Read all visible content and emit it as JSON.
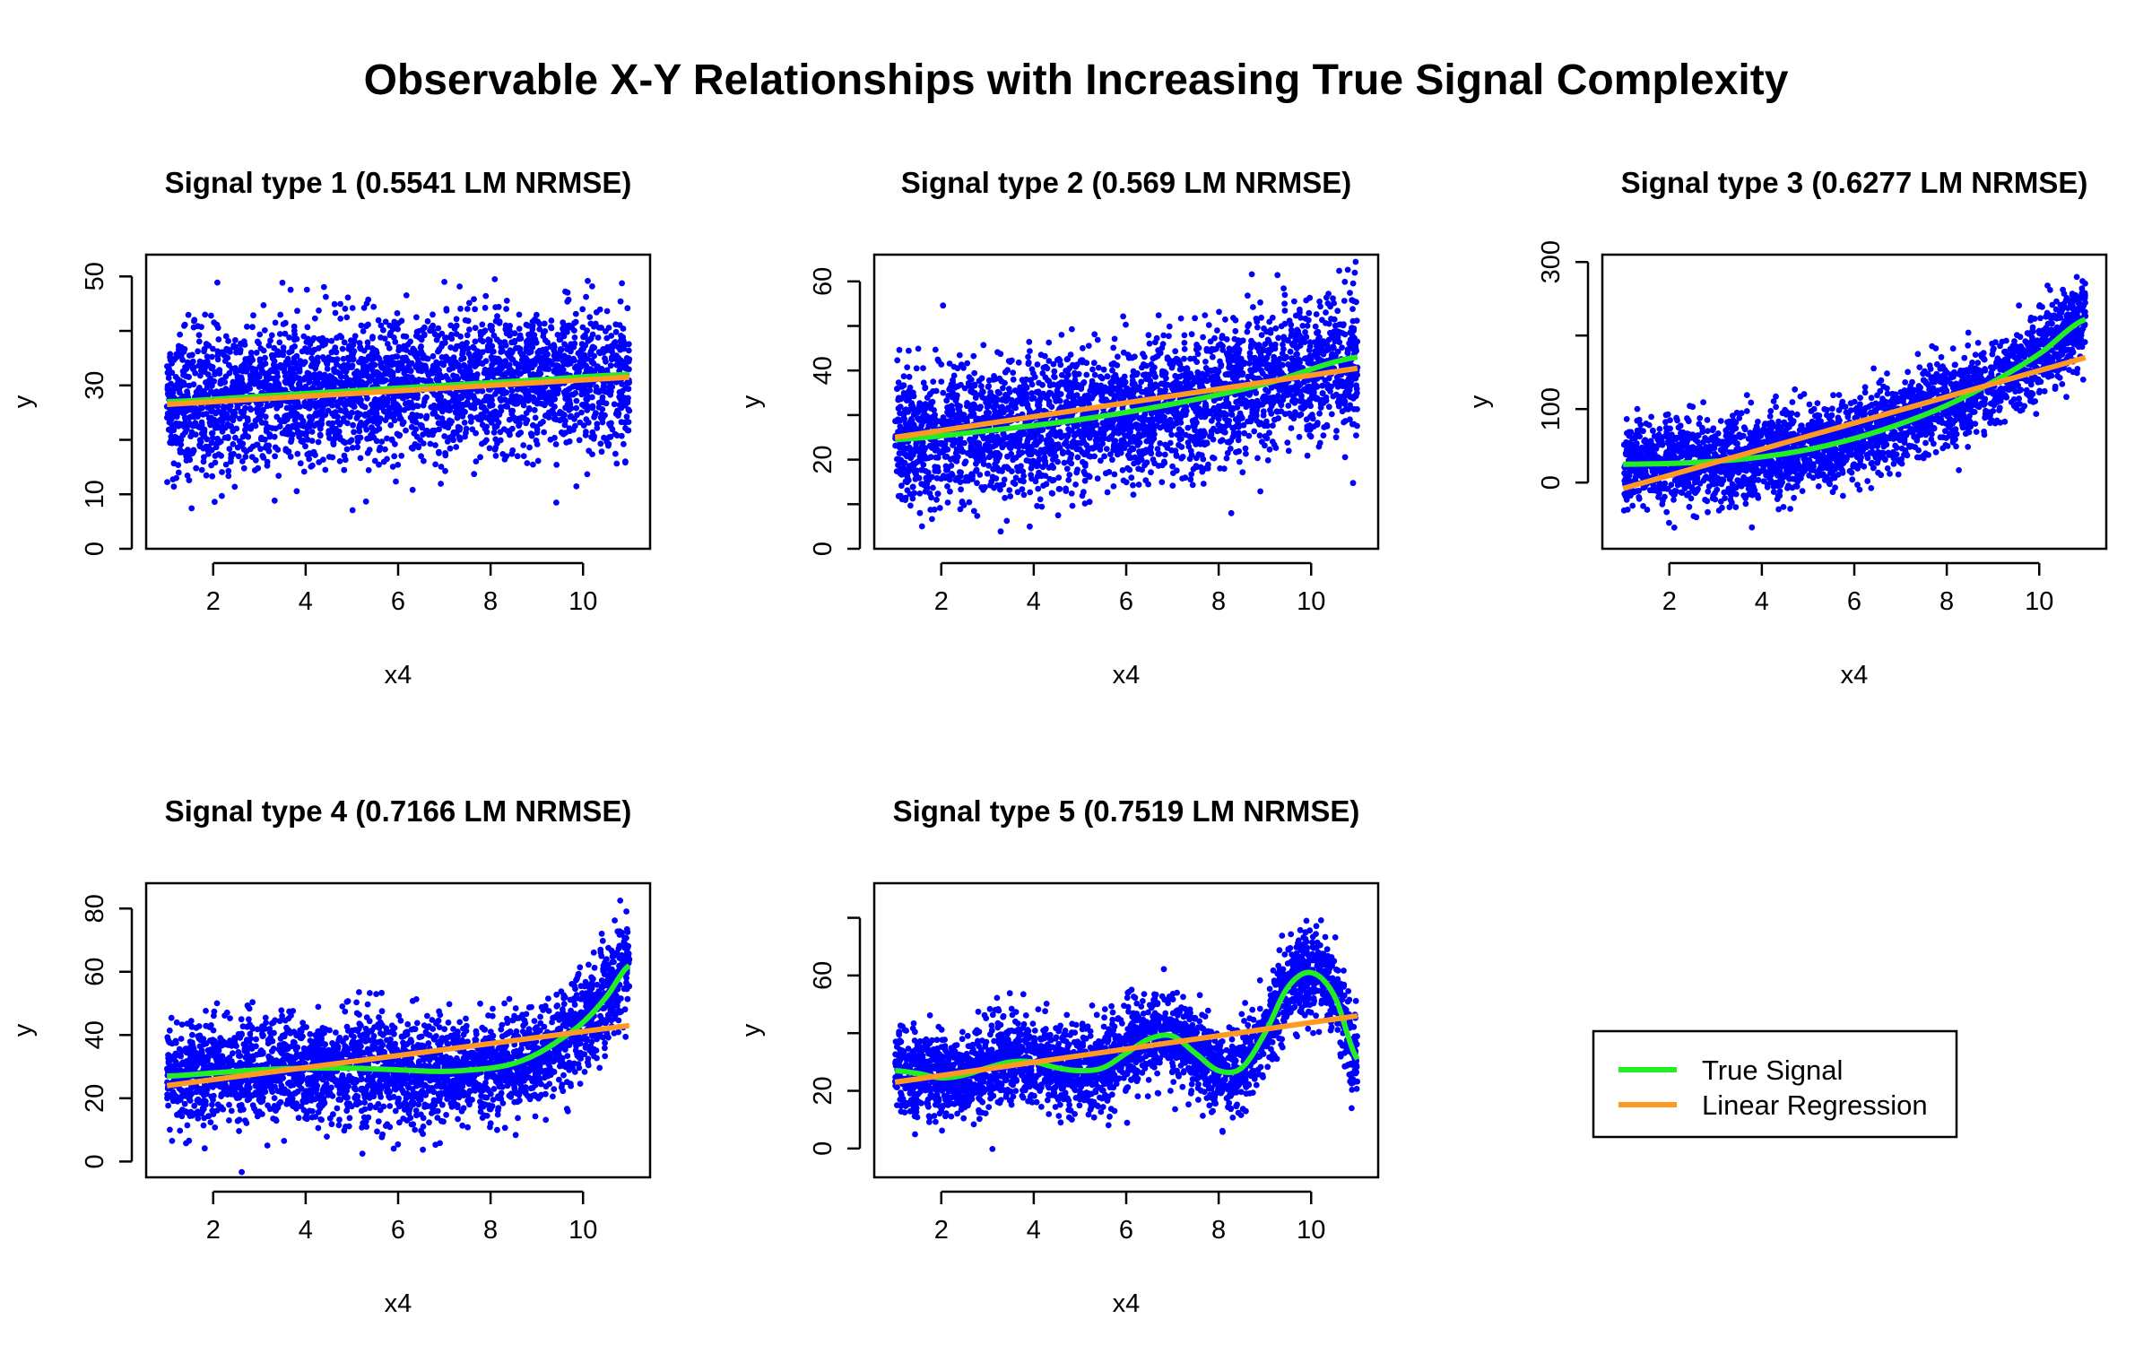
{
  "figure": {
    "title": "Observable X-Y Relationships with Increasing True Signal Complexity"
  },
  "legend": {
    "items": [
      {
        "label": "True Signal",
        "color": "#22ee22"
      },
      {
        "label": "Linear Regression",
        "color": "#ff9922"
      }
    ]
  },
  "colors": {
    "points": "#0000ff",
    "true_signal": "#22ee22",
    "linear_regression": "#ff9922"
  },
  "chart_data": [
    {
      "type": "scatter",
      "title": "Signal type 1 (0.5541 LM NRMSE)",
      "xlabel": "x4",
      "ylabel": "y",
      "xlim": [
        1,
        11
      ],
      "ylim": [
        0,
        54
      ],
      "xticks": [
        2,
        4,
        6,
        8,
        10
      ],
      "yticks": [
        0,
        10,
        20,
        30,
        40,
        50
      ],
      "ytick_labels": [
        "0",
        "10",
        "",
        "30",
        "",
        "50"
      ],
      "point_count": 3000,
      "noise_sd": 6.5,
      "true_signal": {
        "x": [
          1,
          3,
          5,
          7,
          9,
          11
        ],
        "y": [
          27,
          28,
          29,
          30,
          31,
          32
        ]
      },
      "linear_regression": {
        "x": [
          1,
          11
        ],
        "y": [
          26.5,
          31.5
        ]
      }
    },
    {
      "type": "scatter",
      "title": "Signal type 2 (0.569 LM NRMSE)",
      "xlabel": "x4",
      "ylabel": "y",
      "xlim": [
        1,
        11
      ],
      "ylim": [
        0,
        66
      ],
      "xticks": [
        2,
        4,
        6,
        8,
        10
      ],
      "yticks": [
        0,
        10,
        20,
        30,
        40,
        50,
        60
      ],
      "ytick_labels": [
        "0",
        "",
        "20",
        "",
        "40",
        "",
        "60"
      ],
      "point_count": 3000,
      "noise_sd": 7.5,
      "true_signal": {
        "x": [
          1,
          3,
          5,
          7,
          9,
          11
        ],
        "y": [
          24.5,
          26.5,
          29,
          32.5,
          37,
          43
        ]
      },
      "linear_regression": {
        "x": [
          1,
          11
        ],
        "y": [
          25,
          40.5
        ]
      }
    },
    {
      "type": "scatter",
      "title": "Signal type 3 (0.6277 LM NRMSE)",
      "xlabel": "x4",
      "ylabel": "y",
      "xlim": [
        1,
        11
      ],
      "ylim": [
        -90,
        310
      ],
      "xticks": [
        2,
        4,
        6,
        8,
        10
      ],
      "yticks": [
        0,
        100,
        200,
        300
      ],
      "ytick_labels": [
        "0",
        "100",
        "",
        "300"
      ],
      "point_count": 3000,
      "noise_sd": 28,
      "true_signal": {
        "x": [
          1,
          2,
          3,
          4,
          5,
          6,
          7,
          8,
          9,
          10,
          11
        ],
        "y": [
          25,
          26,
          29,
          35,
          45,
          60,
          80,
          105,
          137,
          175,
          222
        ]
      },
      "linear_regression": {
        "x": [
          1,
          11
        ],
        "y": [
          -8,
          170
        ]
      }
    },
    {
      "type": "scatter",
      "title": "Signal type 4 (0.7166 LM NRMSE)",
      "xlabel": "x4",
      "ylabel": "y",
      "xlim": [
        1,
        11
      ],
      "ylim": [
        -5,
        88
      ],
      "xticks": [
        2,
        4,
        6,
        8,
        10
      ],
      "yticks": [
        0,
        20,
        40,
        60,
        80
      ],
      "ytick_labels": [
        "0",
        "20",
        "40",
        "60",
        "80"
      ],
      "point_count": 3000,
      "noise_sd": 8,
      "true_signal": {
        "x": [
          1,
          2,
          3,
          4,
          5,
          6,
          7,
          8,
          8.5,
          9,
          9.5,
          10,
          10.5,
          11
        ],
        "y": [
          27,
          28,
          29,
          29.5,
          29.5,
          29,
          28.5,
          29.5,
          31,
          34,
          38.5,
          44,
          52,
          62
        ]
      },
      "linear_regression": {
        "x": [
          1,
          11
        ],
        "y": [
          24,
          43
        ]
      }
    },
    {
      "type": "scatter",
      "title": "Signal type 5 (0.7519 LM NRMSE)",
      "xlabel": "x4",
      "ylabel": "y",
      "xlim": [
        1,
        11
      ],
      "ylim": [
        -10,
        92
      ],
      "xticks": [
        2,
        4,
        6,
        8,
        10
      ],
      "yticks": [
        0,
        20,
        40,
        60,
        80
      ],
      "ytick_labels": [
        "0",
        "20",
        "",
        "60",
        ""
      ],
      "point_count": 3000,
      "noise_sd": 7.5,
      "true_signal": {
        "x": [
          1,
          1.5,
          2,
          2.5,
          3,
          3.5,
          4,
          4.5,
          5,
          5.5,
          6,
          6.5,
          7,
          7.5,
          8,
          8.5,
          9,
          9.5,
          10,
          10.5,
          11
        ],
        "y": [
          27,
          26,
          24.5,
          25.5,
          28,
          30,
          30,
          28,
          27,
          28,
          33,
          38,
          39,
          33,
          27,
          28,
          40,
          56,
          61,
          53,
          31
        ]
      },
      "linear_regression": {
        "x": [
          1,
          11
        ],
        "y": [
          23,
          46
        ]
      }
    }
  ]
}
